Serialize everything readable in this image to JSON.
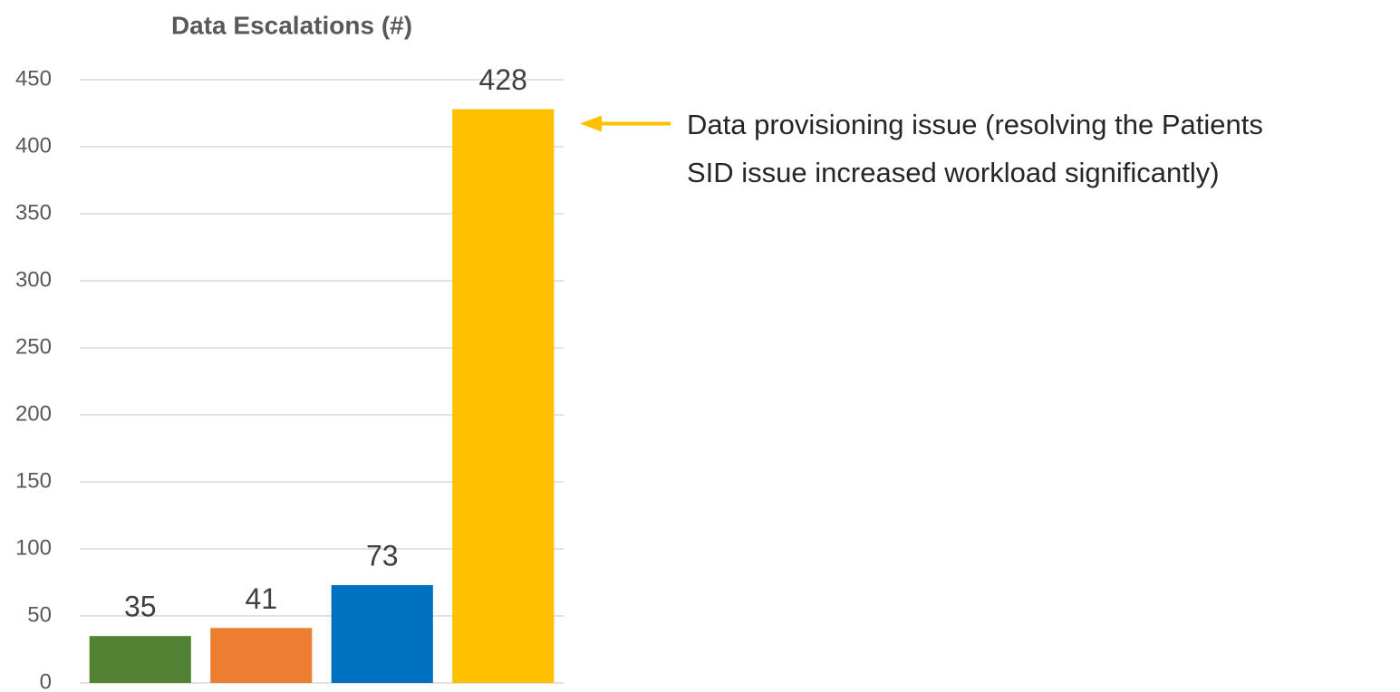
{
  "chart_data": {
    "type": "bar",
    "title": "Data Escalations (#)",
    "categories": [
      null,
      null,
      null,
      null
    ],
    "values": [
      35,
      41,
      73,
      428
    ],
    "colors": [
      "#548235",
      "#ed7d31",
      "#0070c0",
      "#ffc000"
    ],
    "ylim": [
      0,
      450
    ],
    "yticks": [
      0,
      50,
      100,
      150,
      200,
      250,
      300,
      350,
      400,
      450
    ],
    "grid": true,
    "annotation": {
      "lines": [
        "Data provisioning issue (resolving the Patients",
        "SID issue increased workload significantly)"
      ],
      "color": "#ffc000"
    }
  }
}
